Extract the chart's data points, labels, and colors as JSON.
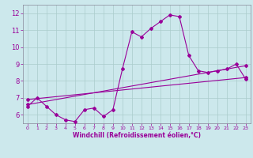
{
  "xlabel": "Windchill (Refroidissement éolien,°C)",
  "bg_color": "#cce8ec",
  "line_color": "#990099",
  "grid_color": "#aacccc",
  "xlim": [
    -0.5,
    23.5
  ],
  "ylim": [
    5.5,
    12.5
  ],
  "xticks": [
    0,
    1,
    2,
    3,
    4,
    5,
    6,
    7,
    8,
    9,
    10,
    11,
    12,
    13,
    14,
    15,
    16,
    17,
    18,
    19,
    20,
    21,
    22,
    23
  ],
  "yticks": [
    6,
    7,
    8,
    9,
    10,
    11,
    12
  ],
  "series1_x": [
    0,
    1,
    2,
    3,
    4,
    5,
    6,
    7,
    8,
    9,
    10,
    11,
    12,
    13,
    14,
    15,
    16,
    17,
    18,
    19,
    20,
    21,
    22,
    23
  ],
  "series1_y": [
    6.5,
    7.0,
    6.5,
    6.0,
    5.7,
    5.6,
    6.3,
    6.4,
    5.9,
    6.3,
    8.7,
    10.9,
    10.6,
    11.1,
    11.5,
    11.9,
    11.8,
    9.5,
    8.6,
    8.5,
    8.6,
    8.7,
    9.0,
    8.1
  ],
  "series2_x": [
    0,
    23
  ],
  "series2_y": [
    6.6,
    8.9
  ],
  "series3_x": [
    0,
    23
  ],
  "series3_y": [
    6.9,
    8.2
  ]
}
